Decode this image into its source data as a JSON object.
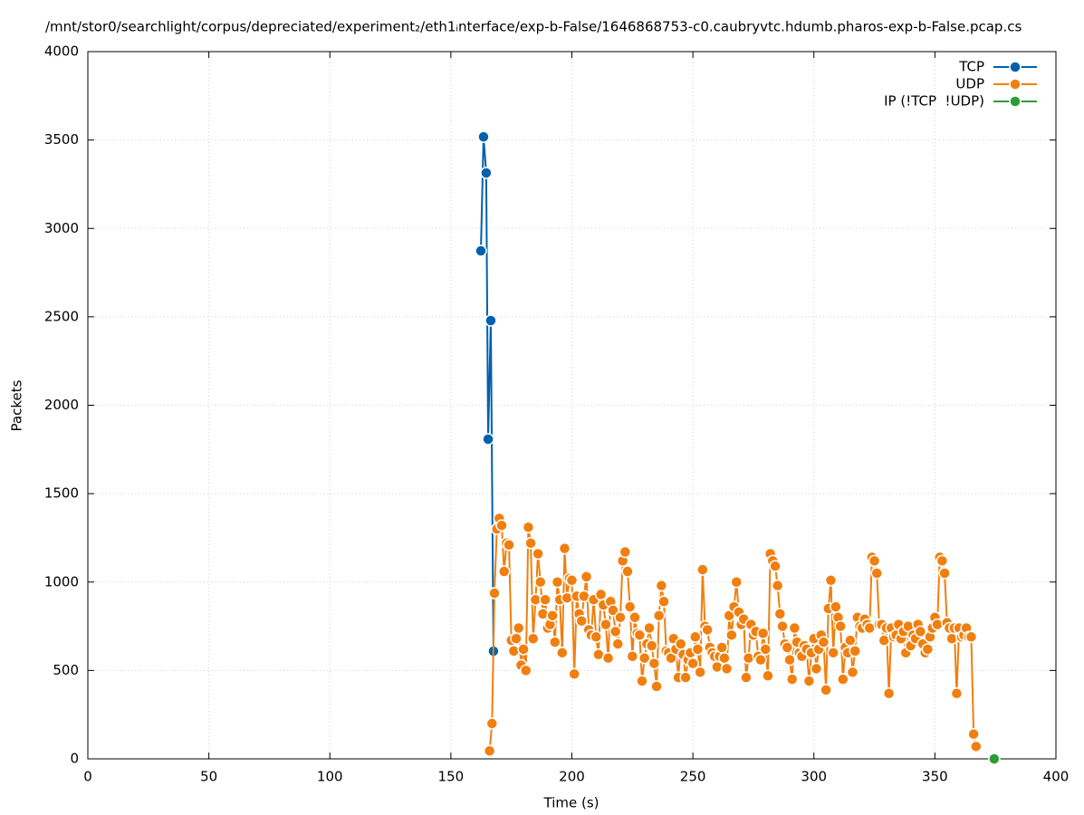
{
  "chart_data": {
    "type": "line",
    "title": "/mnt/stor0/searchlight/corpus/depreciated/experiment₂/eth1ᵢnterface/exp-b-False/1646868753-c0.caubryvtc.hdumb.pharos-exp-b-False.pcap.cs",
    "x_label": "Time (s)",
    "y_label": "Packets",
    "xlim": [
      0,
      400
    ],
    "xticks": [
      0,
      50,
      100,
      150,
      200,
      250,
      300,
      350,
      400
    ],
    "ylim": [
      0,
      4000
    ],
    "yticks": [
      0,
      500,
      1000,
      1500,
      2000,
      2500,
      3000,
      3500,
      4000
    ],
    "grid": true,
    "legend": "top-right",
    "series": [
      {
        "name": "TCP",
        "color": "#0060ad",
        "x": [
          162.4,
          163.5,
          164.6,
          165.4,
          166.5,
          167.6
        ],
        "values": [
          2873,
          3518,
          3314,
          1808,
          2479,
          609
        ]
      },
      {
        "name": "UDP",
        "color": "#f07f0f",
        "x": [
          166,
          167,
          168,
          169,
          170,
          171,
          172,
          173,
          174,
          175,
          176,
          177,
          178,
          179,
          180,
          181,
          182,
          183,
          184,
          185,
          186,
          187,
          188,
          189,
          190,
          191,
          192,
          193,
          194,
          195,
          196,
          197,
          198,
          199,
          200,
          201,
          202,
          203,
          204,
          205,
          206,
          207,
          208,
          209,
          210,
          211,
          212,
          213,
          214,
          215,
          216,
          217,
          218,
          219,
          220,
          221,
          222,
          223,
          224,
          225,
          226,
          227,
          228,
          229,
          230,
          231,
          232,
          233,
          234,
          235,
          236,
          237,
          238,
          239,
          240,
          241,
          242,
          243,
          244,
          245,
          246,
          247,
          248,
          249,
          250,
          251,
          252,
          253,
          254,
          255,
          256,
          257,
          258,
          259,
          260,
          261,
          262,
          263,
          264,
          265,
          266,
          267,
          268,
          269,
          270,
          271,
          272,
          273,
          274,
          275,
          276,
          277,
          278,
          279,
          280,
          281,
          282,
          283,
          284,
          285,
          286,
          287,
          288,
          289,
          290,
          291,
          292,
          293,
          294,
          295,
          296,
          297,
          298,
          299,
          300,
          301,
          302,
          303,
          304,
          305,
          306,
          307,
          308,
          309,
          310,
          311,
          312,
          313,
          314,
          315,
          316,
          317,
          318,
          319,
          320,
          321,
          322,
          323,
          324,
          325,
          326,
          327,
          328,
          329,
          330,
          331,
          332,
          333,
          334,
          335,
          336,
          337,
          338,
          339,
          340,
          341,
          342,
          343,
          344,
          345,
          346,
          347,
          348,
          349,
          350,
          351,
          352,
          353,
          354,
          355,
          356,
          357,
          358,
          359,
          360,
          361,
          362,
          363,
          364,
          365,
          366,
          367
        ],
        "values": [
          45,
          200,
          937,
          1300,
          1360,
          1320,
          1060,
          1220,
          1210,
          670,
          610,
          680,
          740,
          530,
          620,
          500,
          1310,
          1220,
          680,
          900,
          1160,
          1000,
          820,
          900,
          740,
          760,
          810,
          660,
          1000,
          900,
          600,
          1190,
          910,
          1020,
          1010,
          480,
          920,
          820,
          780,
          920,
          1030,
          730,
          700,
          900,
          690,
          590,
          930,
          870,
          760,
          570,
          890,
          840,
          720,
          650,
          800,
          1120,
          1170,
          1060,
          860,
          580,
          800,
          710,
          700,
          440,
          570,
          650,
          740,
          640,
          540,
          410,
          810,
          980,
          890,
          610,
          600,
          570,
          680,
          620,
          460,
          650,
          590,
          460,
          560,
          600,
          540,
          690,
          620,
          490,
          1070,
          750,
          730,
          630,
          600,
          580,
          520,
          580,
          630,
          570,
          510,
          810,
          700,
          860,
          1000,
          830,
          760,
          790,
          460,
          570,
          760,
          700,
          720,
          580,
          560,
          710,
          620,
          470,
          1160,
          1120,
          1090,
          980,
          820,
          750,
          650,
          630,
          560,
          450,
          740,
          660,
          600,
          580,
          640,
          620,
          440,
          600,
          680,
          510,
          620,
          700,
          660,
          390,
          850,
          1010,
          600,
          860,
          800,
          750,
          450,
          630,
          600,
          670,
          490,
          610,
          800,
          750,
          740,
          790,
          760,
          740,
          1140,
          1120,
          1050,
          760,
          760,
          670,
          740,
          370,
          740,
          690,
          700,
          760,
          680,
          720,
          600,
          750,
          640,
          700,
          680,
          760,
          720,
          650,
          600,
          620,
          690,
          740,
          800,
          760,
          1140,
          1120,
          1050,
          770,
          740,
          680,
          740,
          370,
          740,
          690,
          700,
          740,
          690,
          690,
          140,
          70
        ]
      },
      {
        "name": "IP (!TCP  !UDP)",
        "color": "#2e9c34",
        "x": [
          374.5
        ],
        "values": [
          0
        ]
      }
    ]
  }
}
